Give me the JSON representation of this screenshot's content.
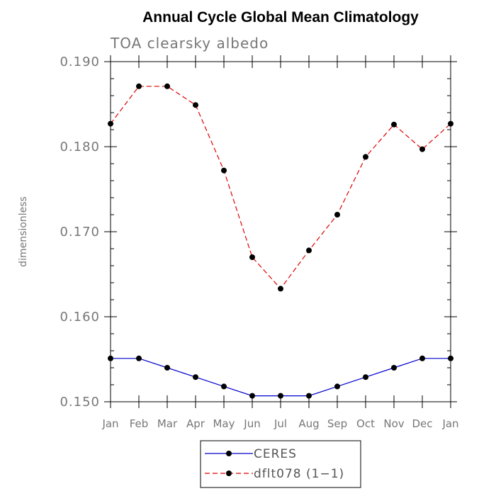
{
  "chart_data": {
    "type": "line",
    "title": "Annual Cycle Global Mean Climatology",
    "subtitle": "TOA clearsky albedo",
    "xlabel": "",
    "ylabel": "dimensionless",
    "categories": [
      "Jan",
      "Feb",
      "Mar",
      "Apr",
      "May",
      "Jun",
      "Jul",
      "Aug",
      "Sep",
      "Oct",
      "Nov",
      "Dec",
      "Jan"
    ],
    "ylim": [
      0.15,
      0.19
    ],
    "yticks": [
      "0.150",
      "0.160",
      "0.170",
      "0.180",
      "0.190"
    ],
    "grid": false,
    "legend_position": "bottom",
    "series": [
      {
        "name": "CERES",
        "color": "#0000cc",
        "dash": "solid",
        "values": [
          0.1551,
          0.1551,
          0.154,
          0.1529,
          0.1518,
          0.1507,
          0.1507,
          0.1507,
          0.1518,
          0.1529,
          0.154,
          0.1551,
          0.1551
        ]
      },
      {
        "name": "dflt078 (1−1)",
        "color": "#dd0000",
        "dash": "dashed",
        "values": [
          0.1827,
          0.1871,
          0.1871,
          0.1849,
          0.1772,
          0.167,
          0.1633,
          0.1678,
          0.172,
          0.1788,
          0.1826,
          0.1797,
          0.1827
        ]
      }
    ]
  }
}
